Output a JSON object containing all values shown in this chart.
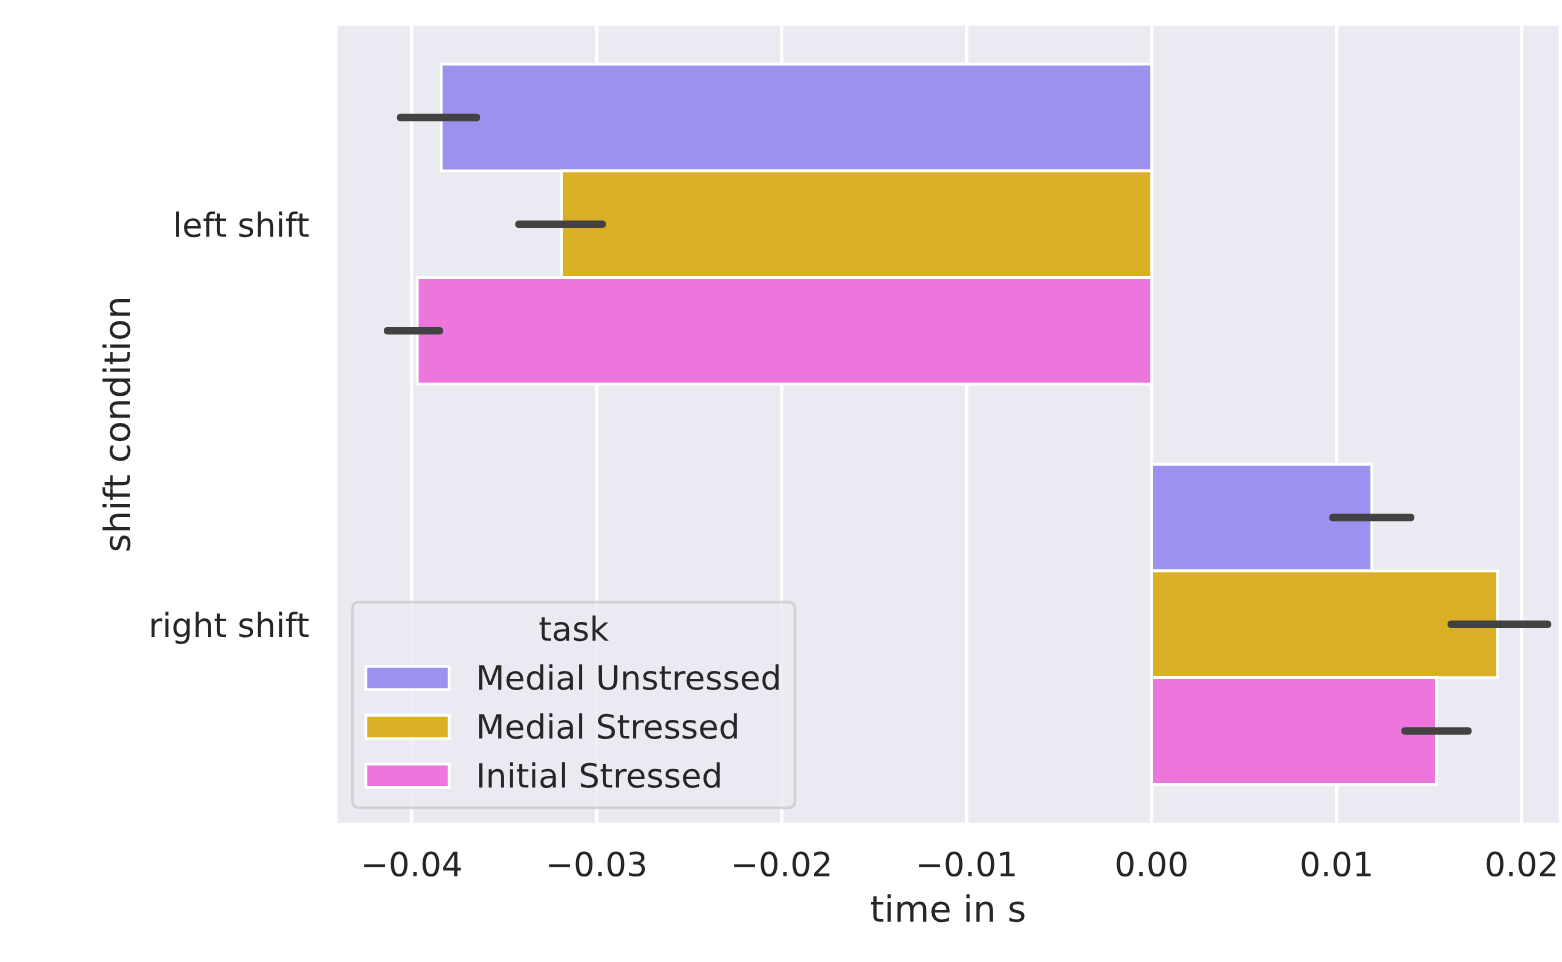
{
  "chart_data": {
    "type": "bar",
    "orientation": "horizontal",
    "xlabel": "time in s",
    "ylabel": "shift condition",
    "legend_title": "task",
    "categories": [
      "left shift",
      "right shift"
    ],
    "series": [
      {
        "name": "Medial Unstressed",
        "color": "#9b91ee",
        "values": [
          -0.0384,
          0.0119
        ],
        "errors": [
          [
            -0.0406,
            -0.0365
          ],
          [
            0.0098,
            0.014
          ]
        ]
      },
      {
        "name": "Medial Stressed",
        "color": "#d9b024",
        "values": [
          -0.0319,
          0.0187
        ],
        "errors": [
          [
            -0.0342,
            -0.0297
          ],
          [
            0.0162,
            0.0214
          ]
        ]
      },
      {
        "name": "Initial Stressed",
        "color": "#ec76dc",
        "values": [
          -0.0397,
          0.0154
        ],
        "errors": [
          [
            -0.0413,
            -0.0385
          ],
          [
            0.0137,
            0.0171
          ]
        ]
      }
    ],
    "xlim": [
      -0.0441,
      0.0221
    ],
    "xticks": [
      {
        "value": -0.04,
        "label": "−0.04"
      },
      {
        "value": -0.03,
        "label": "−0.03"
      },
      {
        "value": -0.02,
        "label": "−0.02"
      },
      {
        "value": -0.01,
        "label": "−0.01"
      },
      {
        "value": 0,
        "label": "0.00"
      },
      {
        "value": 0.01,
        "label": "0.01"
      },
      {
        "value": 0.02,
        "label": "0.02"
      }
    ],
    "grid": "x",
    "legend": "bottom left"
  }
}
